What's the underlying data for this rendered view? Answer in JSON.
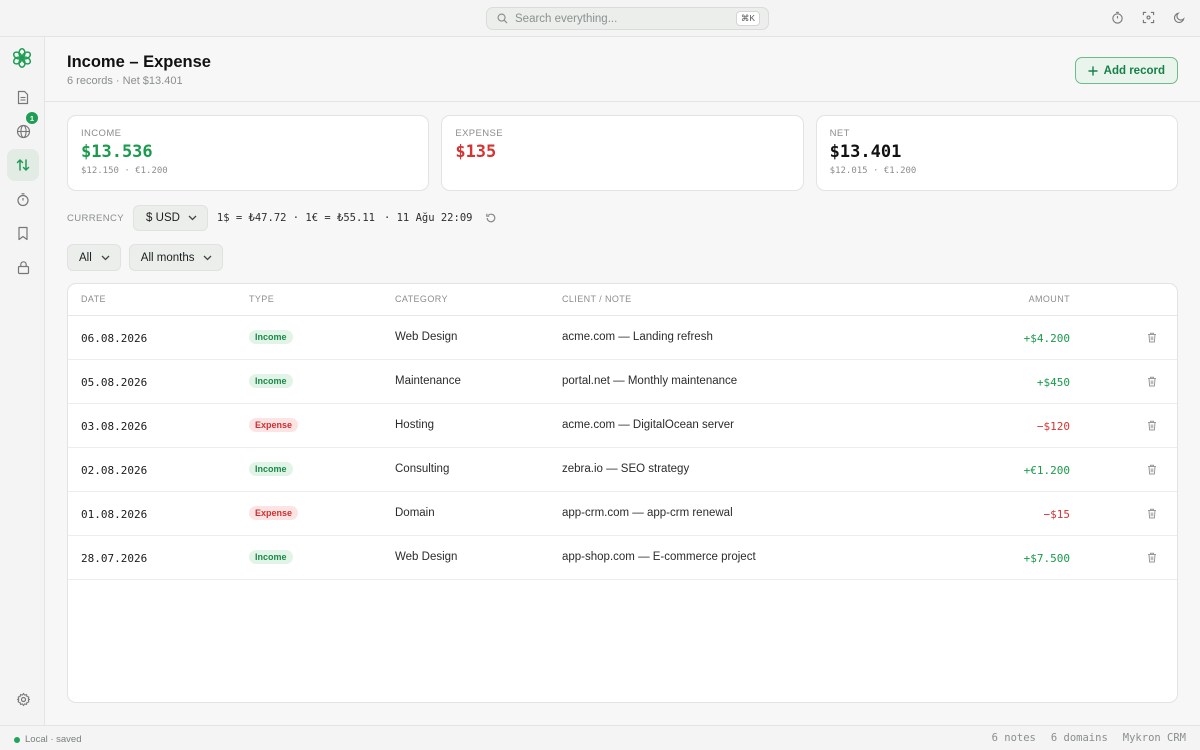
{
  "search": {
    "placeholder": "Search everything...",
    "shortcut": "⌘K"
  },
  "topbar_icons": [
    "timer-icon",
    "focus-icon",
    "moon-icon"
  ],
  "sidebar": {
    "items": [
      {
        "icon": "document-icon"
      },
      {
        "icon": "globe-icon",
        "badge": "1"
      },
      {
        "icon": "arrows-up-down-icon",
        "active": true
      },
      {
        "icon": "timer-icon"
      },
      {
        "icon": "bookmark-icon"
      },
      {
        "icon": "lock-icon"
      }
    ],
    "footer_icon": "gear-icon"
  },
  "header": {
    "title": "Income – Expense",
    "subtitle": "6 records · Net $13.401",
    "add_label": "Add record"
  },
  "cards": {
    "income": {
      "label": "INCOME",
      "value": "$13.536",
      "sub": "$12.150 · €1.200"
    },
    "expense": {
      "label": "EXPENSE",
      "value": "$135"
    },
    "net": {
      "label": "NET",
      "value": "$13.401",
      "sub": "$12.015 · €1.200"
    }
  },
  "currency": {
    "label": "CURRENCY",
    "selected": "$ USD",
    "rates": "1$ = ₺47.72 · 1€ = ₺55.11",
    "updated": "· 11 Ağu 22:09"
  },
  "filters": {
    "type": "All",
    "period": "All months"
  },
  "table": {
    "headers": {
      "date": "DATE",
      "type": "TYPE",
      "category": "CATEGORY",
      "client": "CLIENT / NOTE",
      "amount": "AMOUNT"
    },
    "rows": [
      {
        "date": "06.08.2026",
        "type": "Income",
        "kind": "income",
        "category": "Web Design",
        "client": "acme.com — Landing refresh",
        "amount": "+$4.200"
      },
      {
        "date": "05.08.2026",
        "type": "Income",
        "kind": "income",
        "category": "Maintenance",
        "client": "portal.net — Monthly maintenance",
        "amount": "+$450"
      },
      {
        "date": "03.08.2026",
        "type": "Expense",
        "kind": "expense",
        "category": "Hosting",
        "client": "acme.com — DigitalOcean server",
        "amount": "−$120"
      },
      {
        "date": "02.08.2026",
        "type": "Income",
        "kind": "income",
        "category": "Consulting",
        "client": "zebra.io — SEO strategy",
        "amount": "+€1.200"
      },
      {
        "date": "01.08.2026",
        "type": "Expense",
        "kind": "expense",
        "category": "Domain",
        "client": "app-crm.com — app-crm renewal",
        "amount": "−$15"
      },
      {
        "date": "28.07.2026",
        "type": "Income",
        "kind": "income",
        "category": "Web Design",
        "client": "app-shop.com — E-commerce project",
        "amount": "+$7.500"
      }
    ]
  },
  "status": {
    "left": "Local · saved",
    "notes": "6 notes",
    "domains": "6 domains",
    "app": "Mykron CRM"
  },
  "colors": {
    "accent": "#1f9d55",
    "income": "#1a9a4c",
    "expense": "#d63333",
    "text": "#1d1f1e"
  }
}
